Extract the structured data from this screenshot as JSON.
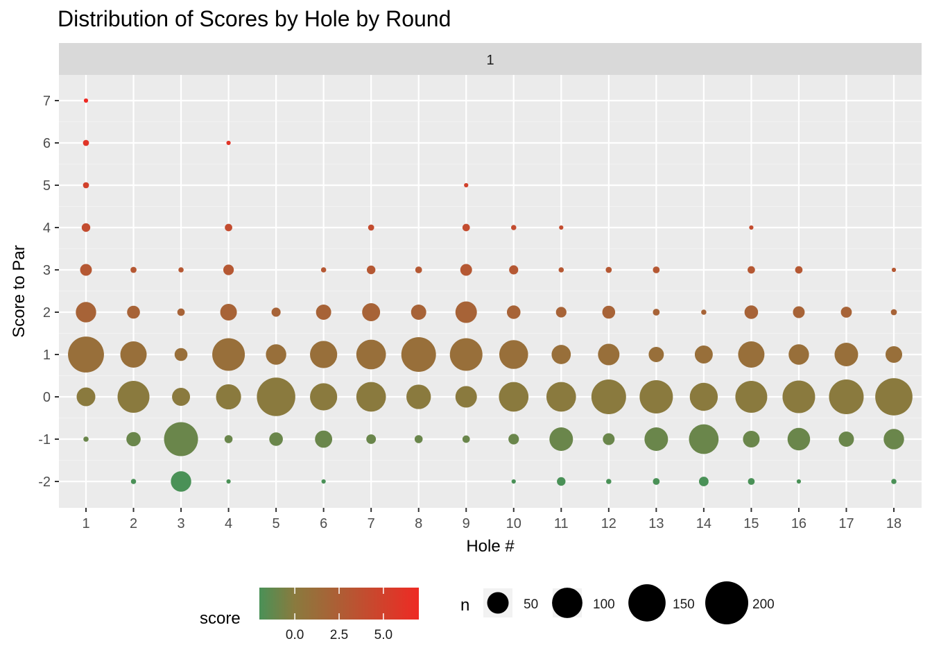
{
  "chart_data": {
    "type": "scatter",
    "title": "Distribution of Scores by Hole by Round",
    "facet_label": "1",
    "xlabel": "Hole #",
    "ylabel": "Score to Par",
    "x_ticks": [
      "1",
      "2",
      "3",
      "4",
      "5",
      "6",
      "7",
      "8",
      "9",
      "10",
      "11",
      "12",
      "13",
      "14",
      "15",
      "16",
      "17",
      "18"
    ],
    "y_ticks": [
      "-2",
      "-1",
      "0",
      "1",
      "2",
      "3",
      "4",
      "5",
      "6",
      "7"
    ],
    "xlim": [
      0.5,
      18.5
    ],
    "ylim": [
      -2.6,
      7.6
    ],
    "grid": true,
    "legend_position": "bottom",
    "color_scale": {
      "title": "score",
      "low": "#4a9157",
      "mid": "#8a7a3e",
      "high": "#ee2a24",
      "domain": [
        -2,
        7
      ],
      "tick_labels": [
        "0.0",
        "2.5",
        "5.0"
      ],
      "tick_values": [
        0,
        2.5,
        5
      ]
    },
    "size_legend": {
      "title": "n",
      "values": [
        50,
        100,
        150,
        200
      ],
      "labels": [
        "50",
        "100",
        "150",
        "200"
      ]
    },
    "points": [
      {
        "hole": 1,
        "score": 7,
        "n": 2
      },
      {
        "hole": 1,
        "score": 6,
        "n": 4
      },
      {
        "hole": 1,
        "score": 5,
        "n": 4
      },
      {
        "hole": 1,
        "score": 4,
        "n": 8
      },
      {
        "hole": 1,
        "score": 3,
        "n": 15
      },
      {
        "hole": 1,
        "score": 2,
        "n": 45
      },
      {
        "hole": 1,
        "score": 1,
        "n": 140
      },
      {
        "hole": 1,
        "score": 0,
        "n": 38
      },
      {
        "hole": 1,
        "score": -1,
        "n": 3
      },
      {
        "hole": 2,
        "score": 3,
        "n": 4
      },
      {
        "hole": 2,
        "score": 2,
        "n": 18
      },
      {
        "hole": 2,
        "score": 1,
        "n": 75
      },
      {
        "hole": 2,
        "score": 0,
        "n": 110
      },
      {
        "hole": 2,
        "score": -1,
        "n": 22
      },
      {
        "hole": 2,
        "score": -2,
        "n": 3
      },
      {
        "hole": 3,
        "score": 3,
        "n": 3
      },
      {
        "hole": 3,
        "score": 2,
        "n": 6
      },
      {
        "hole": 3,
        "score": 1,
        "n": 18
      },
      {
        "hole": 3,
        "score": 0,
        "n": 35
      },
      {
        "hole": 3,
        "score": -1,
        "n": 125
      },
      {
        "hole": 3,
        "score": -2,
        "n": 45
      },
      {
        "hole": 4,
        "score": 6,
        "n": 2
      },
      {
        "hole": 4,
        "score": 4,
        "n": 6
      },
      {
        "hole": 4,
        "score": 3,
        "n": 12
      },
      {
        "hole": 4,
        "score": 2,
        "n": 30
      },
      {
        "hole": 4,
        "score": 1,
        "n": 115
      },
      {
        "hole": 4,
        "score": 0,
        "n": 68
      },
      {
        "hole": 4,
        "score": -1,
        "n": 7
      },
      {
        "hole": 4,
        "score": -2,
        "n": 2
      },
      {
        "hole": 5,
        "score": 2,
        "n": 9
      },
      {
        "hole": 5,
        "score": 1,
        "n": 45
      },
      {
        "hole": 5,
        "score": 0,
        "n": 160
      },
      {
        "hole": 5,
        "score": -1,
        "n": 20
      },
      {
        "hole": 6,
        "score": 3,
        "n": 3
      },
      {
        "hole": 6,
        "score": 2,
        "n": 25
      },
      {
        "hole": 6,
        "score": 1,
        "n": 80
      },
      {
        "hole": 6,
        "score": 0,
        "n": 80
      },
      {
        "hole": 6,
        "score": -1,
        "n": 32
      },
      {
        "hole": 6,
        "score": -2,
        "n": 2
      },
      {
        "hole": 7,
        "score": 4,
        "n": 4
      },
      {
        "hole": 7,
        "score": 3,
        "n": 8
      },
      {
        "hole": 7,
        "score": 2,
        "n": 35
      },
      {
        "hole": 7,
        "score": 1,
        "n": 95
      },
      {
        "hole": 7,
        "score": 0,
        "n": 95
      },
      {
        "hole": 7,
        "score": -1,
        "n": 10
      },
      {
        "hole": 8,
        "score": 3,
        "n": 5
      },
      {
        "hole": 8,
        "score": 2,
        "n": 25
      },
      {
        "hole": 8,
        "score": 1,
        "n": 130
      },
      {
        "hole": 8,
        "score": 0,
        "n": 65
      },
      {
        "hole": 8,
        "score": -1,
        "n": 7
      },
      {
        "hole": 9,
        "score": 5,
        "n": 2
      },
      {
        "hole": 9,
        "score": 4,
        "n": 6
      },
      {
        "hole": 9,
        "score": 3,
        "n": 15
      },
      {
        "hole": 9,
        "score": 2,
        "n": 50
      },
      {
        "hole": 9,
        "score": 1,
        "n": 115
      },
      {
        "hole": 9,
        "score": 0,
        "n": 50
      },
      {
        "hole": 9,
        "score": -1,
        "n": 6
      },
      {
        "hole": 10,
        "score": 4,
        "n": 3
      },
      {
        "hole": 10,
        "score": 3,
        "n": 9
      },
      {
        "hole": 10,
        "score": 2,
        "n": 20
      },
      {
        "hole": 10,
        "score": 1,
        "n": 90
      },
      {
        "hole": 10,
        "score": 0,
        "n": 95
      },
      {
        "hole": 10,
        "score": -1,
        "n": 12
      },
      {
        "hole": 10,
        "score": -2,
        "n": 2
      },
      {
        "hole": 11,
        "score": 4,
        "n": 2
      },
      {
        "hole": 11,
        "score": 3,
        "n": 3
      },
      {
        "hole": 11,
        "score": 2,
        "n": 12
      },
      {
        "hole": 11,
        "score": 1,
        "n": 40
      },
      {
        "hole": 11,
        "score": 0,
        "n": 95
      },
      {
        "hole": 11,
        "score": -1,
        "n": 60
      },
      {
        "hole": 11,
        "score": -2,
        "n": 8
      },
      {
        "hole": 12,
        "score": 3,
        "n": 4
      },
      {
        "hole": 12,
        "score": 2,
        "n": 18
      },
      {
        "hole": 12,
        "score": 1,
        "n": 50
      },
      {
        "hole": 12,
        "score": 0,
        "n": 130
      },
      {
        "hole": 12,
        "score": -1,
        "n": 15
      },
      {
        "hole": 12,
        "score": -2,
        "n": 3
      },
      {
        "hole": 13,
        "score": 3,
        "n": 5
      },
      {
        "hole": 13,
        "score": 2,
        "n": 5
      },
      {
        "hole": 13,
        "score": 1,
        "n": 25
      },
      {
        "hole": 13,
        "score": 0,
        "n": 120
      },
      {
        "hole": 13,
        "score": -1,
        "n": 60
      },
      {
        "hole": 13,
        "score": -2,
        "n": 5
      },
      {
        "hole": 14,
        "score": 2,
        "n": 3
      },
      {
        "hole": 14,
        "score": 1,
        "n": 35
      },
      {
        "hole": 14,
        "score": 0,
        "n": 85
      },
      {
        "hole": 14,
        "score": -1,
        "n": 95
      },
      {
        "hole": 14,
        "score": -2,
        "n": 10
      },
      {
        "hole": 15,
        "score": 4,
        "n": 2
      },
      {
        "hole": 15,
        "score": 3,
        "n": 6
      },
      {
        "hole": 15,
        "score": 2,
        "n": 20
      },
      {
        "hole": 15,
        "score": 1,
        "n": 75
      },
      {
        "hole": 15,
        "score": 0,
        "n": 110
      },
      {
        "hole": 15,
        "score": -1,
        "n": 30
      },
      {
        "hole": 15,
        "score": -2,
        "n": 5
      },
      {
        "hole": 16,
        "score": 3,
        "n": 6
      },
      {
        "hole": 16,
        "score": 2,
        "n": 15
      },
      {
        "hole": 16,
        "score": 1,
        "n": 45
      },
      {
        "hole": 16,
        "score": 0,
        "n": 115
      },
      {
        "hole": 16,
        "score": -1,
        "n": 55
      },
      {
        "hole": 16,
        "score": -2,
        "n": 2
      },
      {
        "hole": 17,
        "score": 2,
        "n": 13
      },
      {
        "hole": 17,
        "score": 1,
        "n": 60
      },
      {
        "hole": 17,
        "score": 0,
        "n": 130
      },
      {
        "hole": 17,
        "score": -1,
        "n": 25
      },
      {
        "hole": 18,
        "score": 3,
        "n": 2
      },
      {
        "hole": 18,
        "score": 2,
        "n": 4
      },
      {
        "hole": 18,
        "score": 1,
        "n": 30
      },
      {
        "hole": 18,
        "score": 0,
        "n": 150
      },
      {
        "hole": 18,
        "score": -1,
        "n": 45
      },
      {
        "hole": 18,
        "score": -2,
        "n": 3
      }
    ]
  }
}
